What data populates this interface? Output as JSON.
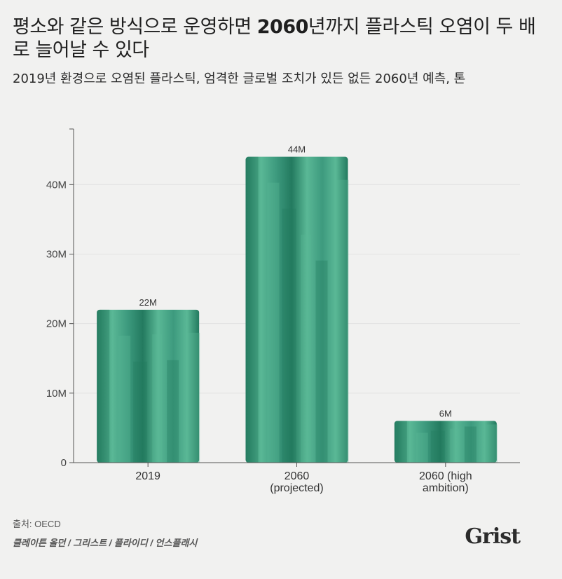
{
  "header": {
    "title_pre": "평소와 같은 방식으로 운영하면 ",
    "title_year": "2060",
    "title_post": "년까지 플라스틱 오염이 두 배로 늘어날 수 있다",
    "subtitle": "2019년 환경으로 오염된 플라스틱, 엄격한 글로벌 조치가 있든 없든 2060년 예측, 톤"
  },
  "footer": {
    "source": "출처: OECD",
    "credit": "클레이튼 올던 / 그리스트 / 플라이디 / 언스플래시",
    "logo": "Grist"
  },
  "colors": {
    "bar": "#3d9a7e",
    "bar_dark": "#237a5f",
    "bar_light": "#5ab896",
    "axis": "#555555",
    "grid": "#e2e2e2"
  },
  "chart_data": {
    "type": "bar",
    "categories": [
      [
        "2019"
      ],
      [
        "2060",
        "(projected)"
      ],
      [
        "2060 (high",
        "ambition)"
      ]
    ],
    "values": [
      22,
      44,
      6
    ],
    "value_labels": [
      "22M",
      "44M",
      "6M"
    ],
    "unit": "M",
    "title": "",
    "xlabel": "",
    "ylabel": "",
    "ylim": [
      0,
      48
    ],
    "yticks": [
      0,
      10,
      20,
      30,
      40
    ],
    "ytick_labels": [
      "0",
      "10M",
      "20M",
      "30M",
      "40M"
    ],
    "grid": true,
    "legend": "none"
  }
}
